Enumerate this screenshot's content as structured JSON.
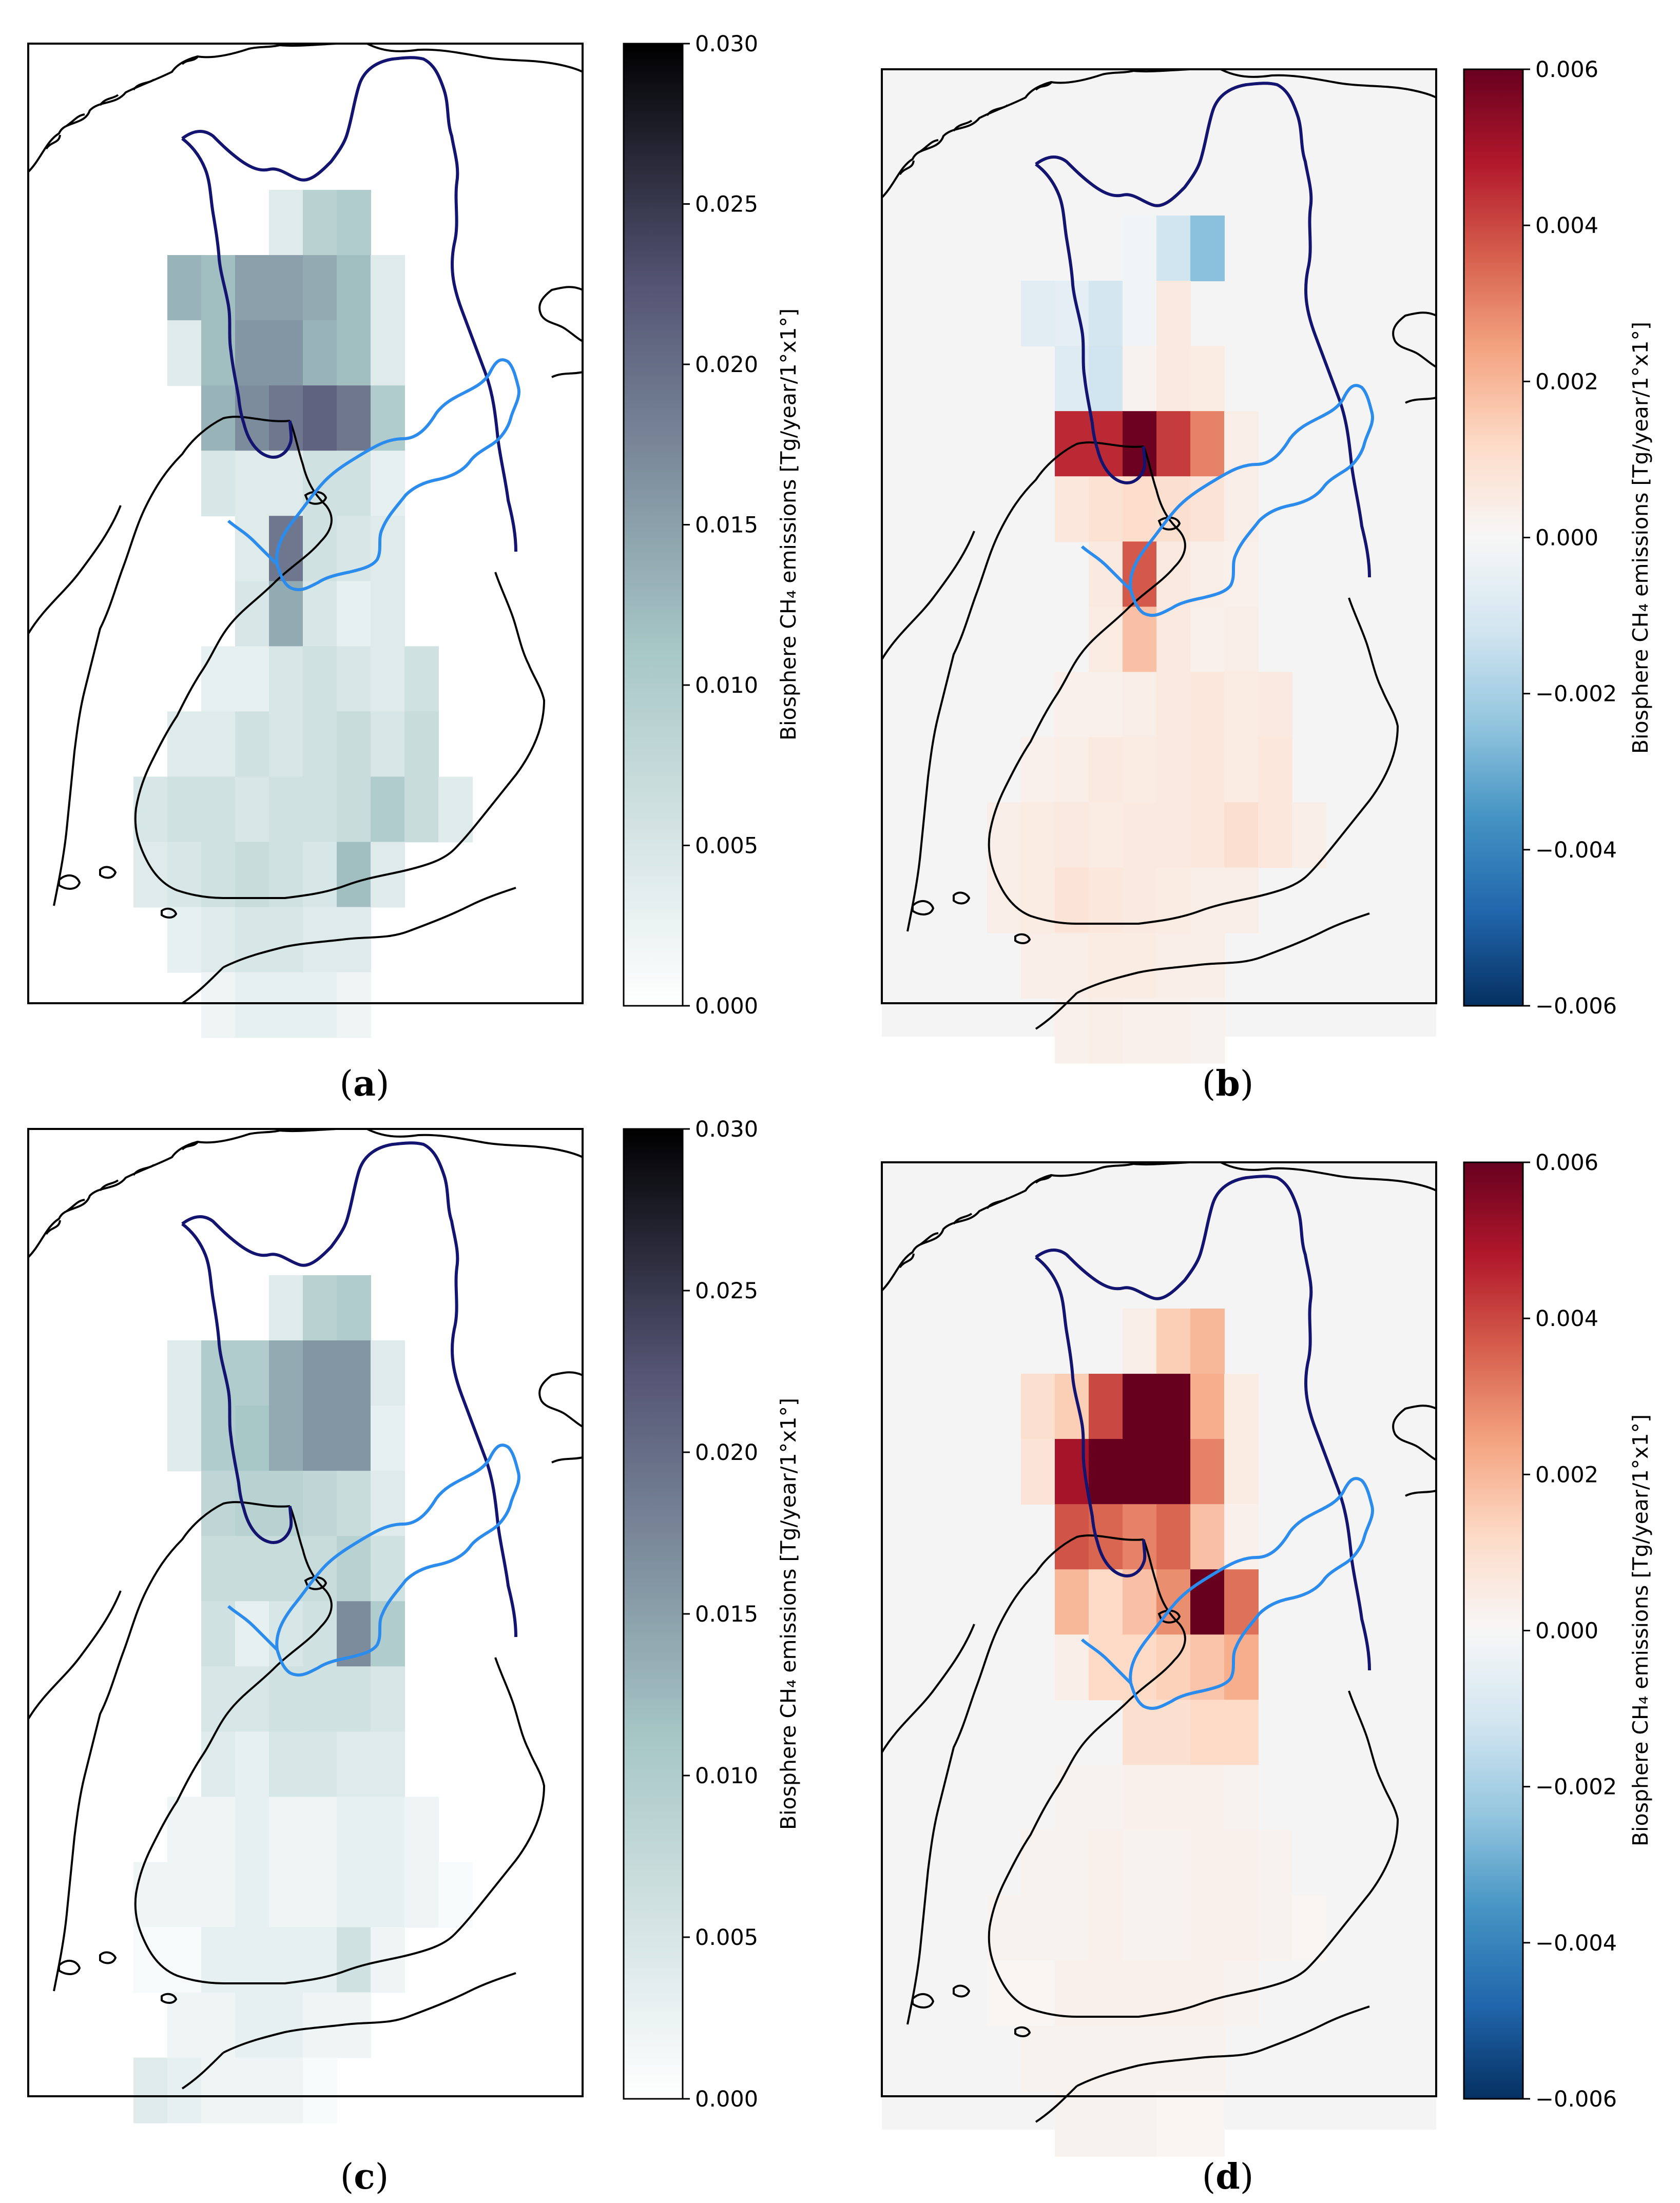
{
  "figure": {
    "colorbar_label": "Biosphere CH₄ emissions [Tg/year/1°x1°]",
    "panels": [
      {
        "id": "a",
        "caption_letter": "a",
        "colormap": "bone_r",
        "ticks": [
          "0.000",
          "0.005",
          "0.010",
          "0.015",
          "0.020",
          "0.025",
          "0.030"
        ],
        "vmin": 0.0,
        "vmax": 0.03,
        "grid": [
          [
            null,
            null,
            null,
            null,
            0.004,
            0.009,
            0.01,
            null,
            null,
            null
          ],
          [
            null,
            0.013,
            0.012,
            0.015,
            0.015,
            0.014,
            0.012,
            0.004,
            null,
            null
          ],
          [
            null,
            0.004,
            0.012,
            0.016,
            0.016,
            0.013,
            0.012,
            0.004,
            null,
            null
          ],
          [
            null,
            null,
            0.013,
            0.017,
            0.019,
            0.021,
            0.019,
            0.01,
            null,
            null
          ],
          [
            null,
            null,
            0.005,
            0.004,
            0.004,
            0.006,
            0.006,
            0.003,
            null,
            null
          ],
          [
            null,
            null,
            null,
            0.004,
            0.019,
            0.006,
            0.005,
            0.004,
            null,
            null
          ],
          [
            null,
            null,
            null,
            0.005,
            0.014,
            0.005,
            0.003,
            0.004,
            null,
            null
          ],
          [
            null,
            null,
            0.003,
            0.003,
            0.005,
            0.006,
            0.005,
            0.004,
            0.006,
            null
          ],
          [
            null,
            0.004,
            0.004,
            0.006,
            0.005,
            0.006,
            0.007,
            0.005,
            0.007,
            null
          ],
          [
            0.005,
            0.006,
            0.006,
            0.005,
            0.006,
            0.006,
            0.007,
            0.01,
            0.007,
            0.004
          ],
          [
            0.004,
            0.005,
            0.006,
            0.007,
            0.006,
            0.005,
            0.012,
            0.004,
            null,
            null
          ],
          [
            null,
            0.003,
            0.004,
            0.005,
            0.005,
            0.004,
            0.004,
            null,
            null,
            null
          ],
          [
            null,
            null,
            0.002,
            0.003,
            0.003,
            0.003,
            0.002,
            null,
            null,
            null
          ]
        ]
      },
      {
        "id": "b",
        "caption_letter": "b",
        "colormap": "RdBu_r",
        "ticks": [
          "−0.006",
          "−0.004",
          "−0.002",
          "0.000",
          "0.002",
          "0.004",
          "0.006"
        ],
        "vmin": -0.006,
        "vmax": 0.006,
        "grid": [
          [
            null,
            null,
            null,
            null,
            -0.0002,
            -0.0012,
            -0.0025,
            null,
            null,
            null
          ],
          [
            null,
            -0.0007,
            -0.0006,
            -0.0011,
            -0.0002,
            0.0006,
            null,
            null,
            null,
            null
          ],
          [
            null,
            null,
            -0.0008,
            -0.0012,
            0.0002,
            0.0006,
            0.0005,
            null,
            null,
            null
          ],
          [
            null,
            null,
            0.0045,
            0.0045,
            0.0059,
            0.0042,
            0.003,
            0.0004,
            null,
            null
          ],
          [
            null,
            null,
            0.0007,
            0.0009,
            0.0011,
            0.001,
            0.0008,
            0.0004,
            null,
            null
          ],
          [
            null,
            null,
            null,
            0.0006,
            0.0037,
            0.0006,
            0.0004,
            0.0003,
            null,
            null
          ],
          [
            null,
            null,
            null,
            0.0005,
            0.0018,
            0.0006,
            0.0003,
            0.0004,
            null,
            null
          ],
          [
            null,
            null,
            0.0003,
            0.0003,
            0.0004,
            0.0006,
            0.0007,
            0.0005,
            0.0006,
            null
          ],
          [
            null,
            0.0003,
            0.0004,
            0.0006,
            0.0005,
            0.0006,
            0.0007,
            0.0005,
            0.0007,
            null
          ],
          [
            0.0004,
            0.0005,
            0.0006,
            0.0005,
            0.0006,
            0.0006,
            0.0007,
            0.001,
            0.0007,
            0.0004
          ],
          [
            0.0004,
            0.0005,
            0.0008,
            0.0007,
            0.0006,
            0.0005,
            0.0004,
            0.0004,
            null,
            null
          ],
          [
            null,
            0.0004,
            0.0004,
            0.0005,
            0.0005,
            0.0004,
            0.0004,
            null,
            null,
            null
          ],
          [
            null,
            null,
            0.0003,
            0.0004,
            0.0003,
            0.0003,
            0.0002,
            null,
            null,
            null
          ]
        ]
      },
      {
        "id": "c",
        "caption_letter": "c",
        "colormap": "bone_r",
        "ticks": [
          "0.000",
          "0.005",
          "0.010",
          "0.015",
          "0.020",
          "0.025",
          "0.030"
        ],
        "vmin": 0.0,
        "vmax": 0.03,
        "grid": [
          [
            null,
            null,
            null,
            null,
            0.004,
            0.009,
            0.01,
            null,
            null,
            null
          ],
          [
            null,
            0.004,
            0.01,
            0.01,
            0.014,
            0.016,
            0.016,
            0.004,
            null,
            null
          ],
          [
            null,
            0.004,
            0.01,
            0.011,
            0.014,
            0.016,
            0.016,
            0.003,
            null,
            null
          ],
          [
            null,
            null,
            0.008,
            0.009,
            0.009,
            0.008,
            0.007,
            0.004,
            null,
            null
          ],
          [
            null,
            null,
            0.007,
            0.007,
            0.007,
            0.007,
            0.009,
            0.006,
            null,
            null
          ],
          [
            null,
            null,
            0.006,
            0.003,
            0.005,
            0.006,
            0.017,
            0.01,
            null,
            null
          ],
          [
            null,
            null,
            0.005,
            0.005,
            0.006,
            0.006,
            0.006,
            0.005,
            null,
            null
          ],
          [
            null,
            null,
            0.004,
            0.003,
            0.005,
            0.005,
            0.004,
            0.004,
            null,
            null
          ],
          [
            null,
            0.002,
            0.002,
            0.003,
            0.002,
            0.002,
            0.003,
            0.003,
            0.002,
            null
          ],
          [
            0.002,
            0.002,
            0.002,
            0.003,
            0.002,
            0.002,
            0.003,
            0.003,
            0.002,
            0.001
          ],
          [
            0.001,
            0.001,
            0.003,
            0.003,
            0.003,
            0.003,
            0.006,
            0.002,
            null,
            null
          ],
          [
            null,
            0.002,
            0.002,
            0.003,
            0.003,
            0.002,
            0.002,
            null,
            null,
            null
          ],
          [
            0.004,
            0.003,
            0.002,
            0.002,
            0.002,
            0.001,
            null,
            null,
            null,
            null
          ]
        ]
      },
      {
        "id": "d",
        "caption_letter": "d",
        "colormap": "RdBu_r",
        "ticks": [
          "−0.006",
          "−0.004",
          "−0.002",
          "0.000",
          "0.002",
          "0.004",
          "0.006"
        ],
        "vmin": -0.006,
        "vmax": 0.006,
        "grid": [
          [
            null,
            null,
            null,
            null,
            0.0004,
            0.0015,
            0.002,
            null,
            null,
            null
          ],
          [
            null,
            0.001,
            0.0015,
            0.004,
            0.0062,
            0.0062,
            0.0022,
            0.0005,
            null,
            null
          ],
          [
            null,
            0.0008,
            0.005,
            0.0062,
            0.0062,
            0.0062,
            0.003,
            0.0005,
            null,
            null
          ],
          [
            null,
            null,
            0.0038,
            0.0035,
            0.003,
            0.0035,
            0.0018,
            0.0003,
            null,
            null
          ],
          [
            null,
            null,
            0.002,
            0.0012,
            0.0018,
            0.0028,
            0.0062,
            0.0033,
            null,
            null
          ],
          [
            null,
            null,
            0.0004,
            0.0012,
            0.0012,
            0.0014,
            0.0017,
            0.0022,
            null,
            null
          ],
          [
            null,
            null,
            null,
            null,
            0.001,
            0.001,
            0.0012,
            0.0012,
            null,
            null
          ],
          [
            null,
            null,
            0.0002,
            0.0002,
            0.0003,
            0.0003,
            0.0003,
            0.0002,
            null,
            null
          ],
          [
            null,
            0.0002,
            0.0002,
            0.0003,
            0.0002,
            0.0002,
            0.0003,
            0.0003,
            0.0002,
            null
          ],
          [
            0.0002,
            0.0002,
            0.0002,
            0.0003,
            0.0002,
            0.0002,
            0.0003,
            0.0003,
            0.0002,
            0.0001
          ],
          [
            0.0001,
            0.0001,
            0.0003,
            0.0003,
            0.0003,
            0.0003,
            0.0003,
            0.0002,
            null,
            null
          ],
          [
            null,
            0.0002,
            0.0002,
            0.0002,
            0.0002,
            0.0002,
            0.0002,
            null,
            null,
            null
          ],
          [
            null,
            null,
            0.0002,
            0.0002,
            0.0002,
            0.0001,
            0.0001,
            null,
            null,
            null
          ]
        ]
      }
    ]
  }
}
